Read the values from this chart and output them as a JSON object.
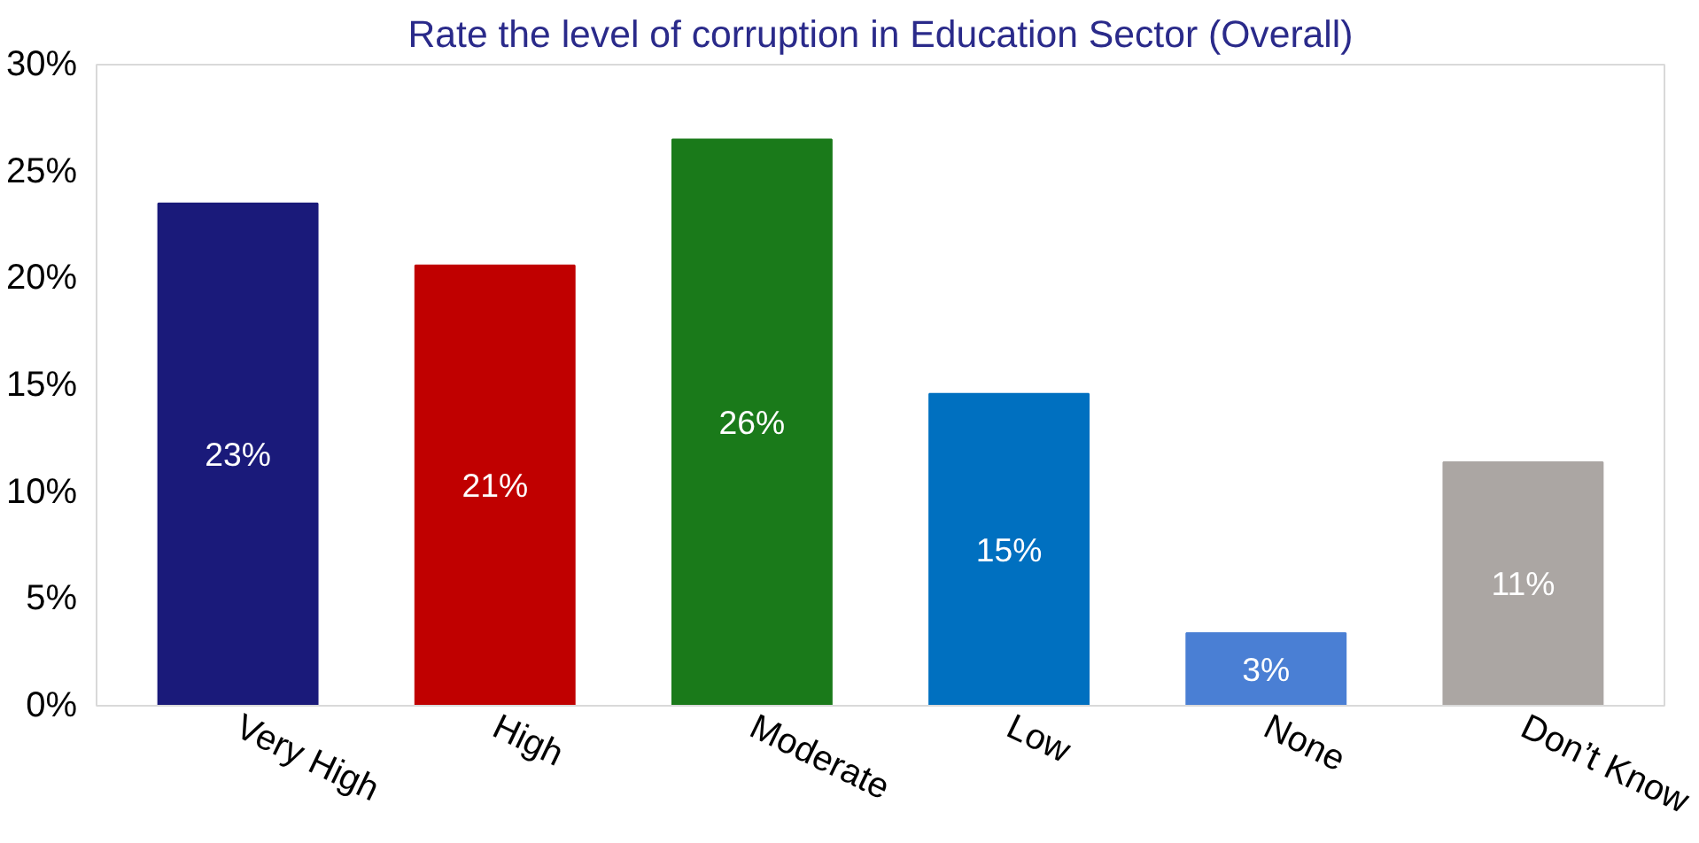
{
  "chart_data": {
    "type": "bar",
    "title": "Rate the level of corruption in Education Sector (Overall)",
    "categories": [
      "Very High",
      "High",
      "Moderate",
      "Low",
      "None",
      "Don’t Know"
    ],
    "values": [
      23.5,
      20.6,
      26.5,
      14.6,
      3.4,
      11.4
    ],
    "value_labels": [
      "23%",
      "21%",
      "26%",
      "15%",
      "3%",
      "11%"
    ],
    "colors": [
      "#1a1a7a",
      "#c00000",
      "#1a7a1a",
      "#0070c0",
      "#4a7fd4",
      "#aba6a3"
    ],
    "ylim": [
      0,
      30
    ],
    "yticks": [
      {
        "value": 0,
        "label": "0%"
      },
      {
        "value": 5,
        "label": "5%"
      },
      {
        "value": 10,
        "label": "10%"
      },
      {
        "value": 15,
        "label": "15%"
      },
      {
        "value": 20,
        "label": "20%"
      },
      {
        "value": 25,
        "label": "25%"
      },
      {
        "value": 30,
        "label": "30%"
      }
    ],
    "grid": false
  }
}
